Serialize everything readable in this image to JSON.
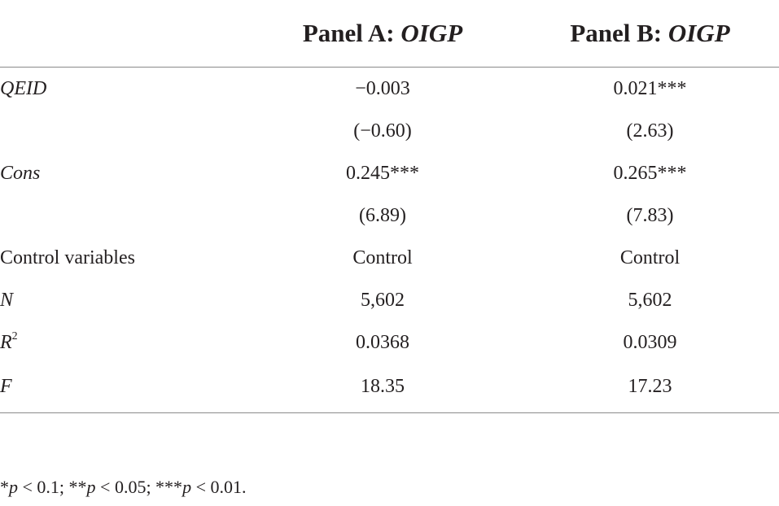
{
  "header": {
    "panel_a_prefix": "Panel A: ",
    "panel_a_var": "OIGP",
    "panel_b_prefix": "Panel B: ",
    "panel_b_var": "OIGP"
  },
  "rows": [
    {
      "label": "QEID",
      "italic": true,
      "a": "−0.003",
      "b": "0.021***"
    },
    {
      "label": "",
      "italic": false,
      "a": "(−0.60)",
      "b": "(2.63)"
    },
    {
      "label": "Cons",
      "italic": true,
      "a": "0.245***",
      "b": "0.265***"
    },
    {
      "label": "",
      "italic": false,
      "a": "(6.89)",
      "b": "(7.83)"
    },
    {
      "label": "Control variables",
      "italic": false,
      "a": "Control",
      "b": "Control"
    },
    {
      "label": "N",
      "italic": true,
      "a": "5,602",
      "b": "5,602"
    },
    {
      "label": "R",
      "sup": "2",
      "italic": true,
      "a": "0.0368",
      "b": "0.0309"
    },
    {
      "label": "F",
      "italic": true,
      "a": "18.35",
      "b": "17.23"
    }
  ],
  "note": {
    "s1": "*",
    "p1": "p",
    "t1": " < 0.1; **",
    "p2": "p",
    "t2": " < 0.05; ***",
    "p3": "p",
    "t3": " < 0.01."
  }
}
